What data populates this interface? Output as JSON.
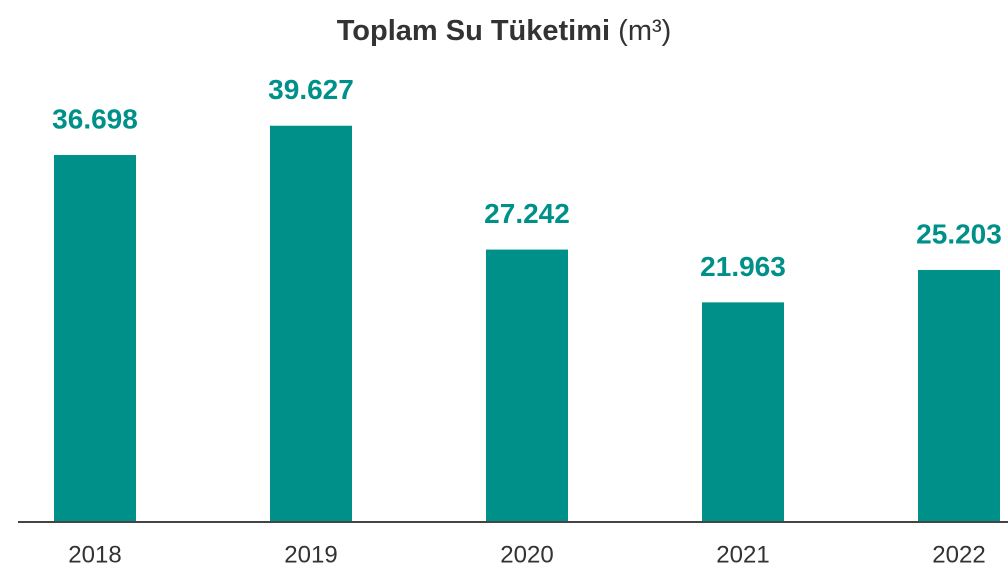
{
  "chart_data": {
    "type": "bar",
    "title": "Toplam Su Tüketimi",
    "title_unit": "(m³)",
    "categories": [
      "2018",
      "2019",
      "2020",
      "2021",
      "2022"
    ],
    "values": [
      36698,
      39627,
      27242,
      21963,
      25203
    ],
    "value_labels": [
      "36.698",
      "39.627",
      "27.242",
      "21.963",
      "25.203"
    ],
    "color": "#00908a",
    "ylim": [
      0,
      40000
    ]
  }
}
